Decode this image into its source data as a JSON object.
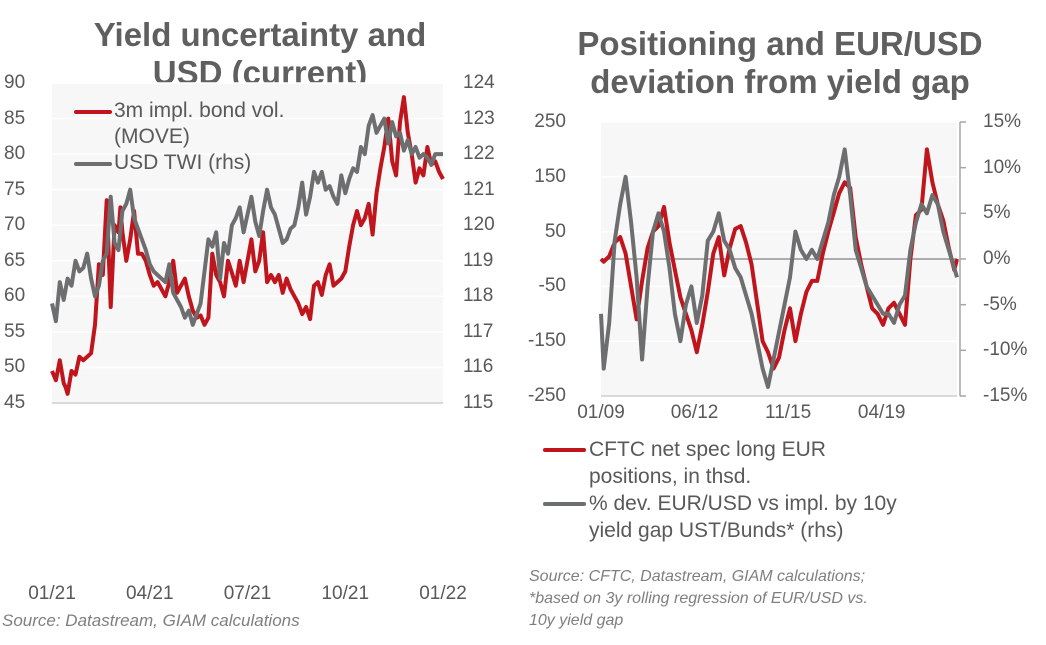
{
  "colors": {
    "red": "#c0151c",
    "gray": "#6d6e70",
    "plot_bg": "#f7f7f7",
    "grid": "#ffffff"
  },
  "chart_data": [
    {
      "type": "line",
      "title": "Yield uncertainty and USD (current)",
      "title_lines": [
        "Yield uncertainty and",
        "USD (current)"
      ],
      "x_tick_labels": [
        "01/21",
        "04/21",
        "07/21",
        "10/21",
        "01/22"
      ],
      "x_range": [
        2021.0,
        2022.0
      ],
      "y_left": {
        "range": [
          45,
          90
        ],
        "ticks": [
          "90",
          "85",
          "80",
          "75",
          "70",
          "65",
          "60",
          "55",
          "50",
          "45"
        ]
      },
      "y_right": {
        "range": [
          115,
          124
        ],
        "ticks": [
          "124",
          "123",
          "122",
          "121",
          "120",
          "119",
          "118",
          "117",
          "116",
          "115"
        ]
      },
      "legend": [
        {
          "name": "3m impl. bond vol. (MOVE)",
          "lines": [
            "3m impl. bond vol.",
            "(MOVE)"
          ],
          "color": "red",
          "axis": "left"
        },
        {
          "name": "USD TWI (rhs)",
          "lines": [
            "USD TWI (rhs)"
          ],
          "color": "gray",
          "axis": "right"
        }
      ],
      "legend_position": "top-left",
      "grid": true,
      "source": "Source:  Datastream, GIAM calculations",
      "series": [
        {
          "name": "3m impl. bond vol. (MOVE)",
          "axis": "left",
          "x": [
            0.0,
            0.01,
            0.02,
            0.03,
            0.035,
            0.04,
            0.05,
            0.06,
            0.07,
            0.08,
            0.09,
            0.1,
            0.11,
            0.12,
            0.13,
            0.14,
            0.15,
            0.16,
            0.17,
            0.175,
            0.18,
            0.19,
            0.2,
            0.21,
            0.22,
            0.23,
            0.24,
            0.25,
            0.26,
            0.27,
            0.28,
            0.29,
            0.3,
            0.31,
            0.32,
            0.33,
            0.34,
            0.35,
            0.36,
            0.37,
            0.38,
            0.39,
            0.4,
            0.41,
            0.42,
            0.43,
            0.44,
            0.45,
            0.46,
            0.47,
            0.48,
            0.49,
            0.5,
            0.51,
            0.52,
            0.53,
            0.54,
            0.55,
            0.56,
            0.57,
            0.58,
            0.59,
            0.6,
            0.61,
            0.62,
            0.63,
            0.64,
            0.65,
            0.66,
            0.67,
            0.68,
            0.69,
            0.7,
            0.71,
            0.72,
            0.73,
            0.74,
            0.75,
            0.76,
            0.77,
            0.78,
            0.79,
            0.8,
            0.81,
            0.82,
            0.83,
            0.84,
            0.85,
            0.86,
            0.87,
            0.88,
            0.89,
            0.9,
            0.91,
            0.92,
            0.93,
            0.94,
            0.95,
            0.96,
            0.97,
            0.98,
            0.99,
            1.0
          ],
          "values": [
            49.5,
            48.2,
            51,
            47.8,
            47.2,
            46.3,
            49.5,
            49,
            51.5,
            51,
            51.5,
            52,
            56,
            64.5,
            63,
            73.5,
            58.5,
            70,
            69,
            72.5,
            69,
            65,
            68,
            72,
            66,
            66,
            65,
            63,
            61.5,
            62,
            61,
            60,
            62,
            65,
            60.5,
            61.5,
            62.5,
            60,
            58,
            57,
            57.3,
            56,
            57,
            66,
            63,
            62,
            60,
            65,
            63.3,
            61.5,
            65,
            62,
            65,
            68,
            63.5,
            65,
            69,
            62,
            63,
            62,
            63,
            60.5,
            62.5,
            61,
            60,
            59,
            57.5,
            58.5,
            56.8,
            61.5,
            62,
            60.2,
            63,
            64.5,
            61.5,
            62,
            62.5,
            63.5,
            67,
            70,
            72,
            70,
            71,
            73,
            68.7,
            74.5,
            78,
            81,
            85,
            79,
            77,
            84.5,
            88,
            83,
            80,
            76,
            78,
            77,
            81,
            78.5,
            79,
            77.5,
            76.5
          ]
        },
        {
          "name": "USD TWI (rhs)",
          "axis": "right",
          "x": [
            0.0,
            0.01,
            0.02,
            0.03,
            0.04,
            0.05,
            0.06,
            0.07,
            0.08,
            0.09,
            0.1,
            0.11,
            0.12,
            0.13,
            0.14,
            0.15,
            0.16,
            0.17,
            0.18,
            0.19,
            0.2,
            0.21,
            0.22,
            0.23,
            0.24,
            0.25,
            0.26,
            0.27,
            0.28,
            0.29,
            0.3,
            0.31,
            0.32,
            0.33,
            0.34,
            0.35,
            0.36,
            0.37,
            0.38,
            0.39,
            0.4,
            0.41,
            0.42,
            0.43,
            0.44,
            0.45,
            0.46,
            0.47,
            0.48,
            0.49,
            0.5,
            0.51,
            0.52,
            0.53,
            0.54,
            0.55,
            0.56,
            0.57,
            0.58,
            0.59,
            0.6,
            0.61,
            0.62,
            0.63,
            0.64,
            0.65,
            0.66,
            0.67,
            0.68,
            0.69,
            0.7,
            0.71,
            0.72,
            0.73,
            0.74,
            0.75,
            0.76,
            0.77,
            0.78,
            0.79,
            0.8,
            0.81,
            0.82,
            0.83,
            0.84,
            0.85,
            0.86,
            0.87,
            0.88,
            0.89,
            0.9,
            0.91,
            0.92,
            0.93,
            0.94,
            0.95,
            0.96,
            0.97,
            0.98,
            0.99,
            1.0
          ],
          "values": [
            117.8,
            117.3,
            118.4,
            117.9,
            118.5,
            118.3,
            119.0,
            118.7,
            118.8,
            119.2,
            118.5,
            118.0,
            118.3,
            119.0,
            119.2,
            120.8,
            119.5,
            119.3,
            120.4,
            120.6,
            121.0,
            120.2,
            119.9,
            119.6,
            119.3,
            118.9,
            118.7,
            118.6,
            118.5,
            118.4,
            118.9,
            118.1,
            117.9,
            117.7,
            117.4,
            117.6,
            117.2,
            117.5,
            117.8,
            118.7,
            119.6,
            119.4,
            119.8,
            118.5,
            119.5,
            119.2,
            120.0,
            120.2,
            120.5,
            119.8,
            120.3,
            120.8,
            120.1,
            119.7,
            120.4,
            121.0,
            120.5,
            120.3,
            119.9,
            119.5,
            119.6,
            119.9,
            120.0,
            120.5,
            121.2,
            120.3,
            120.8,
            121.5,
            121.2,
            121.5,
            121.0,
            121.1,
            120.8,
            120.6,
            121.4,
            120.9,
            121.3,
            121.6,
            121.5,
            122.2,
            122.0,
            122.8,
            123.1,
            122.6,
            122.8,
            123.0,
            122.3,
            122.9,
            122.5,
            122.6,
            122.1,
            122.4,
            122.0,
            122.2,
            121.9,
            122.0,
            121.9,
            121.7,
            122.0,
            122.0,
            122.0
          ]
        }
      ]
    },
    {
      "type": "line",
      "title": "Positioning and EUR/USD deviation from yield gap",
      "title_lines": [
        "Positioning and EUR/USD",
        "deviation from yield gap"
      ],
      "x_tick_labels": [
        "01/09",
        "06/12",
        "11/15",
        "04/19"
      ],
      "x_range": [
        2009.0,
        2022.0
      ],
      "y_left": {
        "range": [
          -250,
          250
        ],
        "ticks": [
          "250",
          "150",
          "50",
          "-50",
          "-150",
          "-250"
        ]
      },
      "y_right": {
        "range": [
          -15,
          15
        ],
        "ticks": [
          "15%",
          "10%",
          "5%",
          "0%",
          "-5%",
          "-10%",
          "-15%"
        ]
      },
      "legend": [
        {
          "name": "CFTC net spec long EUR positions, in thsd.",
          "lines": [
            "CFTC net spec long EUR",
            "positions, in thsd."
          ],
          "color": "red",
          "axis": "left"
        },
        {
          "name": "% dev. EUR/USD vs impl. by 10y yield gap UST/Bunds* (rhs)",
          "lines": [
            "% dev. EUR/USD vs impl. by 10y",
            "yield gap UST/Bunds* (rhs)"
          ],
          "color": "gray",
          "axis": "right"
        }
      ],
      "legend_position": "bottom",
      "grid": true,
      "source_lines": [
        "Source: CFTC, Datastream, GIAM calculations;",
        "*based on 3y rolling regression of EUR/USD vs.",
        "10y yield gap"
      ],
      "series": [
        {
          "name": "CFTC net spec long EUR positions, in thsd.",
          "axis": "left",
          "x": [
            2009.0,
            2009.1,
            2009.3,
            2009.5,
            2009.7,
            2009.9,
            2010.1,
            2010.3,
            2010.5,
            2010.7,
            2010.9,
            2011.1,
            2011.3,
            2011.5,
            2011.7,
            2011.9,
            2012.1,
            2012.3,
            2012.5,
            2012.7,
            2012.9,
            2013.1,
            2013.3,
            2013.5,
            2013.7,
            2013.9,
            2014.1,
            2014.3,
            2014.5,
            2014.7,
            2014.9,
            2015.1,
            2015.3,
            2015.5,
            2015.7,
            2015.9,
            2016.1,
            2016.3,
            2016.5,
            2016.7,
            2016.9,
            2017.1,
            2017.3,
            2017.5,
            2017.7,
            2017.9,
            2018.1,
            2018.3,
            2018.5,
            2018.7,
            2018.9,
            2019.1,
            2019.3,
            2019.5,
            2019.7,
            2019.9,
            2020.1,
            2020.3,
            2020.5,
            2020.7,
            2020.9,
            2021.1,
            2021.3,
            2021.5,
            2021.7,
            2021.9,
            2022.0
          ],
          "values": [
            0,
            -5,
            5,
            30,
            40,
            10,
            -50,
            -110,
            -40,
            20,
            50,
            60,
            95,
            30,
            -20,
            -70,
            -100,
            -130,
            -170,
            -120,
            -60,
            10,
            40,
            -30,
            20,
            55,
            60,
            30,
            -10,
            -80,
            -150,
            -170,
            -200,
            -180,
            -130,
            -90,
            -150,
            -100,
            -60,
            -40,
            -40,
            10,
            50,
            85,
            120,
            140,
            130,
            40,
            -10,
            -50,
            -90,
            -100,
            -120,
            -90,
            -80,
            -100,
            -120,
            0,
            80,
            90,
            200,
            140,
            100,
            70,
            20,
            -20,
            0
          ]
        },
        {
          "name": "% dev. EUR/USD vs impl. by 10y yield gap UST/Bunds* (rhs)",
          "axis": "right",
          "x": [
            2009.0,
            2009.1,
            2009.3,
            2009.5,
            2009.7,
            2009.9,
            2010.1,
            2010.3,
            2010.5,
            2010.7,
            2010.9,
            2011.1,
            2011.3,
            2011.5,
            2011.7,
            2011.9,
            2012.1,
            2012.3,
            2012.5,
            2012.7,
            2012.9,
            2013.1,
            2013.3,
            2013.5,
            2013.7,
            2013.9,
            2014.1,
            2014.3,
            2014.5,
            2014.7,
            2014.9,
            2015.1,
            2015.3,
            2015.5,
            2015.7,
            2015.9,
            2016.1,
            2016.3,
            2016.5,
            2016.7,
            2016.9,
            2017.1,
            2017.3,
            2017.5,
            2017.7,
            2017.9,
            2018.1,
            2018.3,
            2018.5,
            2018.7,
            2018.9,
            2019.1,
            2019.3,
            2019.5,
            2019.7,
            2019.9,
            2020.1,
            2020.3,
            2020.5,
            2020.7,
            2020.9,
            2021.1,
            2021.3,
            2021.5,
            2021.7,
            2021.9,
            2022.0
          ],
          "values": [
            -6,
            -12,
            -7,
            2,
            6,
            9,
            4,
            -2,
            -11,
            -3,
            3,
            5,
            3,
            -1,
            -6,
            -9,
            -5,
            -3,
            -7,
            -4,
            2,
            3,
            5,
            2,
            1,
            -1,
            -2,
            -4,
            -6,
            -9,
            -12,
            -14,
            -11,
            -8,
            -5,
            -2,
            3,
            1,
            0,
            1,
            0,
            2,
            4,
            7,
            9,
            12,
            7,
            1,
            -1,
            -3,
            -4,
            -5,
            -6,
            -6,
            -7,
            -5,
            -4,
            1,
            4,
            6,
            5,
            7,
            6,
            3,
            1,
            -1,
            -2
          ]
        }
      ]
    }
  ]
}
